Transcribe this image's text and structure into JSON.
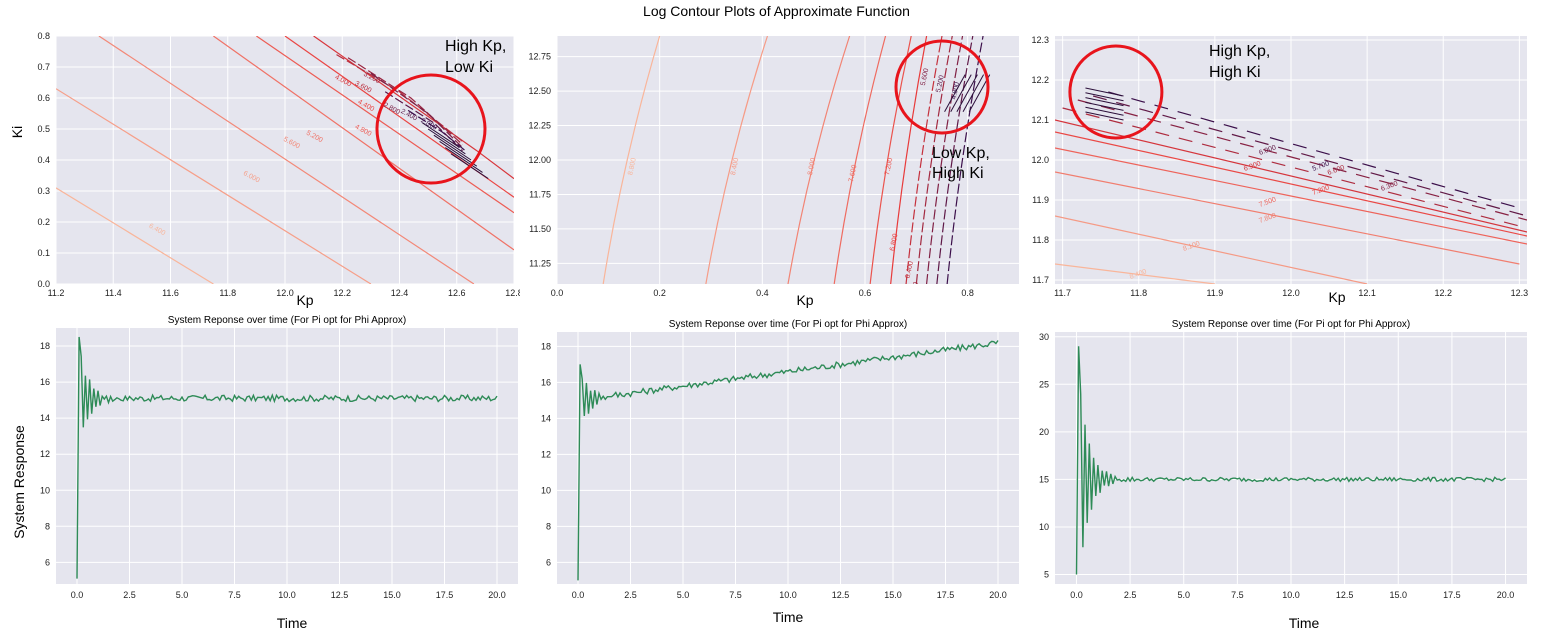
{
  "figure": {
    "suptitle": "Log Contour Plots of Approximate Function",
    "colors": {
      "plot_bg": "#e5e5ee",
      "grid": "#ffffff",
      "line_green": "#2e8b57",
      "circle": "#e8141c"
    }
  },
  "chart_data": [
    {
      "type": "contour",
      "title": "",
      "xlabel": "Kp",
      "ylabel": "Ki",
      "xlim": [
        11.2,
        12.8
      ],
      "ylim": [
        0.0,
        0.8
      ],
      "xticks": [
        "11.2",
        "11.4",
        "11.6",
        "11.8",
        "12.0",
        "12.2",
        "12.4",
        "12.6",
        "12.8"
      ],
      "yticks": [
        "0.0",
        "0.1",
        "0.2",
        "0.3",
        "0.4",
        "0.5",
        "0.6",
        "0.7",
        "0.8"
      ],
      "contour_labels": [
        "6.400",
        "6.000",
        "5.600",
        "5.200",
        "4.800",
        "4.400",
        "4.000",
        "3.600",
        "3.200",
        "2.800",
        "2.400",
        "2.000"
      ],
      "annotation": {
        "line1": "High Kp,",
        "line2": "Low Ki"
      }
    },
    {
      "type": "contour",
      "title": "",
      "xlabel": "Kp",
      "ylabel": "",
      "xlim": [
        0.0,
        0.9
      ],
      "ylim": [
        11.1,
        12.9
      ],
      "xticks": [
        "0.0",
        "0.2",
        "0.4",
        "0.6",
        "0.8"
      ],
      "yticks": [
        "11.25",
        "11.50",
        "11.75",
        "12.00",
        "12.25",
        "12.50",
        "12.75"
      ],
      "contour_labels": [
        "8.800",
        "8.400",
        "8.000",
        "7.600",
        "7.200",
        "6.800",
        "6.400",
        "6.000",
        "5.600",
        "5.200",
        "4.800"
      ],
      "annotation": {
        "line1": "Low Kp,",
        "line2": "High Ki"
      }
    },
    {
      "type": "contour",
      "title": "",
      "xlabel": "Kp",
      "ylabel": "",
      "xlim": [
        11.69,
        12.31
      ],
      "ylim": [
        11.69,
        12.31
      ],
      "xticks": [
        "11.7",
        "11.8",
        "11.9",
        "12.0",
        "12.1",
        "12.2",
        "12.3"
      ],
      "yticks": [
        "11.7",
        "11.8",
        "11.9",
        "12.0",
        "12.1",
        "12.2",
        "12.3"
      ],
      "contour_labels": [
        "8.400",
        "8.100",
        "7.800",
        "7.500",
        "7.200",
        "6.900",
        "6.600",
        "6.300",
        "6.000",
        "5.700"
      ],
      "annotation": {
        "line1": "High Kp,",
        "line2": "High Ki"
      }
    },
    {
      "type": "line",
      "title": "System Reponse over time (For Pi opt for Phi Approx)",
      "xlabel": "Time",
      "ylabel": "System Response",
      "xlim": [
        -1.0,
        21.0
      ],
      "ylim": [
        4.8,
        19.0
      ],
      "xticks": [
        "0.0",
        "2.5",
        "5.0",
        "7.5",
        "10.0",
        "12.5",
        "15.0",
        "17.5",
        "20.0"
      ],
      "yticks": [
        "6",
        "8",
        "10",
        "12",
        "14",
        "16",
        "18"
      ],
      "series": [
        {
          "start": 5.1,
          "peak": 18.5,
          "settle": 15.1,
          "slope": 0.0
        }
      ]
    },
    {
      "type": "line",
      "title": "System Reponse over time (For Pi opt for Phi Approx)",
      "xlabel": "Time",
      "ylabel": "",
      "xlim": [
        -1.0,
        21.0
      ],
      "ylim": [
        4.8,
        18.8
      ],
      "xticks": [
        "0.0",
        "2.5",
        "5.0",
        "7.5",
        "10.0",
        "12.5",
        "15.0",
        "17.5",
        "20.0"
      ],
      "yticks": [
        "6",
        "8",
        "10",
        "12",
        "14",
        "16",
        "18"
      ],
      "series": [
        {
          "start": 5.0,
          "peak": 17.0,
          "settle": 15.0,
          "slope": 0.16
        }
      ]
    },
    {
      "type": "line",
      "title": "System Reponse over time (For Pi opt for Phi Approx)",
      "xlabel": "Time",
      "ylabel": "",
      "xlim": [
        -1.0,
        21.0
      ],
      "ylim": [
        4.0,
        30.5
      ],
      "xticks": [
        "0.0",
        "2.5",
        "5.0",
        "7.5",
        "10.0",
        "12.5",
        "15.0",
        "17.5",
        "20.0"
      ],
      "yticks": [
        "5",
        "10",
        "15",
        "20",
        "25",
        "30"
      ],
      "series": [
        {
          "start": 5.0,
          "peak": 29.0,
          "settle": 15.0,
          "slope": 0.0
        }
      ]
    }
  ]
}
